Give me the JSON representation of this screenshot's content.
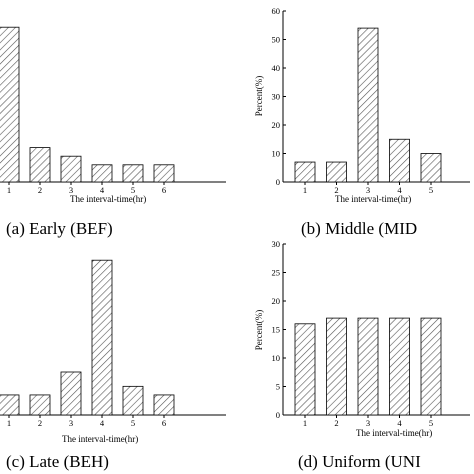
{
  "chart_data": [
    {
      "type": "bar",
      "caption": "(a) Early (BEF)",
      "xlabel": "The interval-time(hr)",
      "ylabel": "",
      "categories": [
        "1",
        "2",
        "3",
        "4",
        "5",
        "6"
      ],
      "values": [
        54,
        12,
        9,
        6,
        6,
        6
      ],
      "ylim": [
        0,
        60
      ],
      "show_y_axis": false,
      "pattern": "diagonal-hatch"
    },
    {
      "type": "bar",
      "caption": "(b) Middle (MID",
      "xlabel": "The interval-time(hr)",
      "ylabel": "Percent(%)",
      "categories": [
        "1",
        "2",
        "3",
        "4",
        "5"
      ],
      "values": [
        7,
        7,
        54,
        15,
        10
      ],
      "ylim": [
        0,
        60
      ],
      "yticks": [
        "0",
        "10",
        "20",
        "30",
        "40",
        "50",
        "60"
      ],
      "show_y_axis": true,
      "pattern": "diagonal-hatch"
    },
    {
      "type": "bar",
      "caption": "(c) Late (BEH)",
      "xlabel": "The interval-time(hr)",
      "ylabel": "",
      "categories": [
        "1",
        "2",
        "3",
        "4",
        "5",
        "6"
      ],
      "values": [
        7,
        7,
        15,
        54,
        10,
        7
      ],
      "ylim": [
        0,
        60
      ],
      "show_y_axis": false,
      "pattern": "diagonal-hatch"
    },
    {
      "type": "bar",
      "caption": "(d) Uniform (UNI",
      "xlabel": "The interval-time(hr)",
      "ylabel": "Percent(%)",
      "categories": [
        "1",
        "2",
        "3",
        "4",
        "5"
      ],
      "values": [
        16,
        17,
        17,
        17,
        17
      ],
      "ylim": [
        0,
        30
      ],
      "yticks": [
        "0",
        "5",
        "10",
        "15",
        "20",
        "25",
        "30"
      ],
      "show_y_axis": true,
      "pattern": "diagonal-hatch"
    }
  ]
}
